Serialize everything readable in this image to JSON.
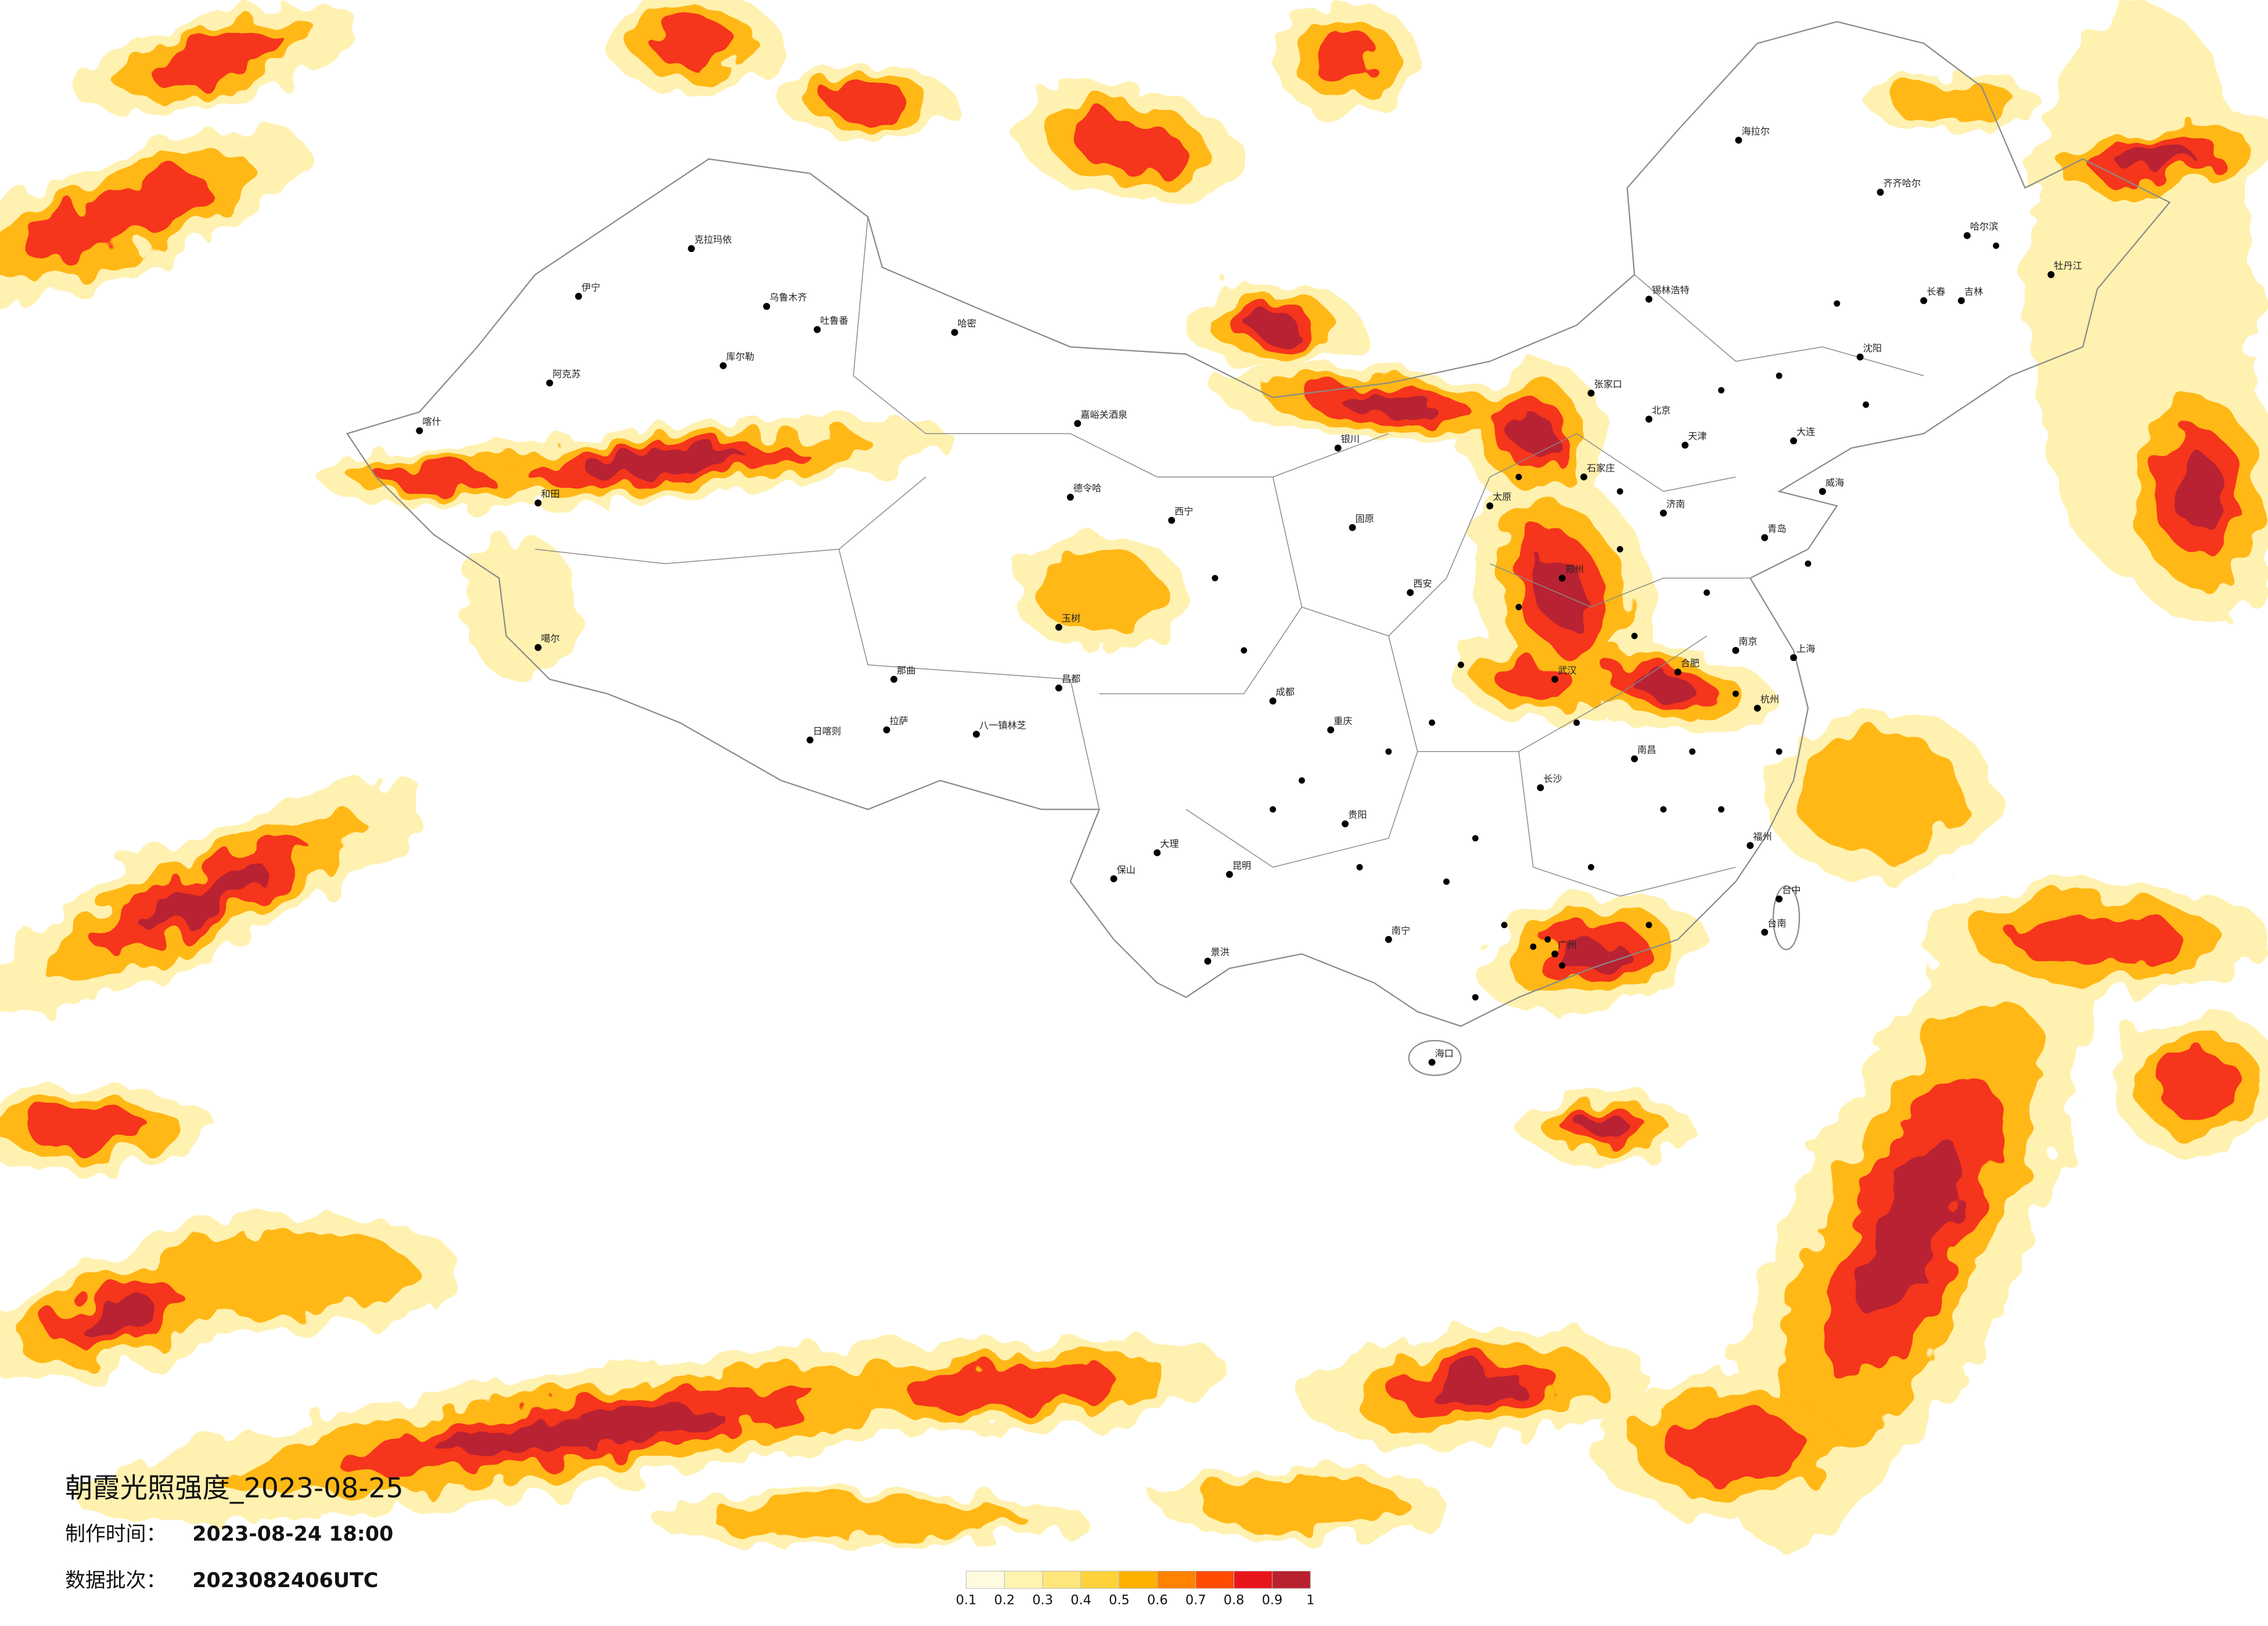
{
  "title": "朝霞光照强度_2023-08-25",
  "made_time": {
    "label": "制作时间：",
    "value": "2023-08-24 18:00"
  },
  "batch": {
    "label": "数据批次：",
    "value": "2023082406UTC"
  },
  "legend": {
    "colors": [
      "#fffbe0",
      "#fff3b0",
      "#ffe67a",
      "#ffd23c",
      "#ffb000",
      "#ff8200",
      "#ff4c00",
      "#e8141c",
      "#b8222e"
    ],
    "ticks": [
      0.1,
      0.2,
      0.3,
      0.4,
      0.5,
      0.6,
      0.7,
      0.8,
      0.9,
      1
    ]
  },
  "cities": [
    "克拉玛依",
    "乌鲁木齐",
    "吐鲁番",
    "哈密",
    "库尔勒",
    "伊宁",
    "阿克苏",
    "喀什",
    "和田",
    "噶尔",
    "日喀则",
    "拉萨",
    "八一镇林芝",
    "那曲",
    "昌都",
    "玉树",
    "德令哈",
    "嘉峪关酒泉",
    "西宁",
    "银川",
    "固原",
    "海拉尔",
    "齐齐哈尔",
    "哈尔滨",
    "牡丹江",
    "长春",
    "吉林",
    "沈阳",
    "大连",
    "锡林浩特",
    "张家口",
    "北京",
    "天津",
    "石家庄",
    "太原",
    "济南",
    "青岛",
    "威海",
    "郑州",
    "西安",
    "武汉",
    "南京",
    "上海",
    "杭州",
    "合肥",
    "长沙",
    "南昌",
    "福州",
    "台中",
    "台南",
    "广州",
    "南宁",
    "贵阳",
    "昆明",
    "成都",
    "重庆",
    "大理",
    "保山",
    "景洪",
    "海口"
  ]
}
